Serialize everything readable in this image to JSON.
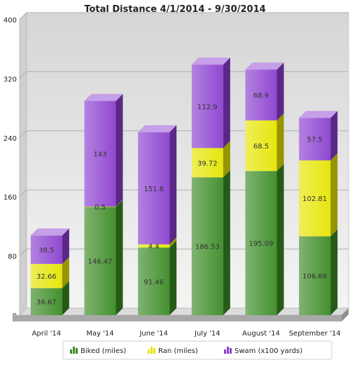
{
  "chart_data": {
    "type": "bar",
    "stacked": true,
    "title": "Total Distance 4/1/2014 - 9/30/2014",
    "xlabel": "",
    "ylabel": "",
    "ylim": [
      0,
      400
    ],
    "yticks": [
      0,
      80,
      160,
      240,
      320,
      400
    ],
    "grid": true,
    "legend_position": "bottom",
    "categories": [
      "April '14",
      "May '14",
      "June '14",
      "July '14",
      "August '14",
      "September '14"
    ],
    "series": [
      {
        "name": "Biked (miles)",
        "color": "#3a8a24",
        "values": [
          36.67,
          146.47,
          91.46,
          186.53,
          195.09,
          106.68
        ]
      },
      {
        "name": "Ran (miles)",
        "color": "#e5e500",
        "values": [
          32.66,
          0.5,
          4.4,
          39.72,
          68.5,
          102.81
        ]
      },
      {
        "name": "Swam (x100 yards)",
        "color": "#8a3ecf",
        "values": [
          38.5,
          143,
          151.8,
          112.9,
          68.9,
          57.5
        ]
      }
    ]
  }
}
